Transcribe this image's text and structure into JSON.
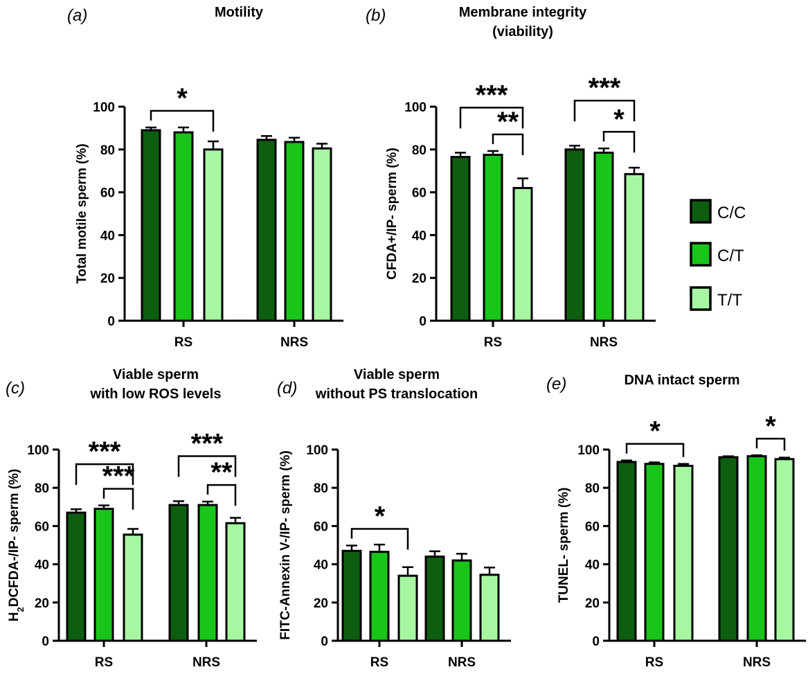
{
  "chart_data": [
    {
      "type": "bar",
      "panel": "(a)",
      "title_lines": [
        "Motility"
      ],
      "ylabel": "Total motile sperm (%)",
      "ylim": [
        0,
        100
      ],
      "yticks": [
        0,
        20,
        40,
        60,
        80,
        100
      ],
      "categories": [
        "RS",
        "NRS"
      ],
      "series": [
        {
          "name": "C/C",
          "values": [
            89,
            84.5
          ],
          "errors": [
            1.3,
            1.8
          ]
        },
        {
          "name": "C/T",
          "values": [
            88,
            83.5
          ],
          "errors": [
            2.3,
            2.0
          ]
        },
        {
          "name": "T/T",
          "values": [
            80,
            80.5
          ],
          "errors": [
            3.8,
            2.2
          ]
        }
      ],
      "significance": [
        {
          "category": 0,
          "from": 0,
          "to": 2,
          "label": "*"
        }
      ]
    },
    {
      "type": "bar",
      "panel": "(b)",
      "title_lines": [
        "Membrane integrity",
        "(viability)"
      ],
      "ylabel": "CFDA+/IP-  sperm (%)",
      "ylim": [
        0,
        100
      ],
      "yticks": [
        0,
        20,
        40,
        60,
        80,
        100
      ],
      "categories": [
        "RS",
        "NRS"
      ],
      "series": [
        {
          "name": "C/C",
          "values": [
            76.5,
            80
          ],
          "errors": [
            2.0,
            1.8
          ]
        },
        {
          "name": "C/T",
          "values": [
            77.5,
            78.5
          ],
          "errors": [
            1.8,
            2.0
          ]
        },
        {
          "name": "T/T",
          "values": [
            62,
            68.5
          ],
          "errors": [
            4.5,
            3.0
          ]
        }
      ],
      "significance": [
        {
          "category": 0,
          "from": 0,
          "to": 2,
          "label": "***"
        },
        {
          "category": 0,
          "from": 1,
          "to": 2,
          "label": "**"
        },
        {
          "category": 1,
          "from": 0,
          "to": 2,
          "label": "***"
        },
        {
          "category": 1,
          "from": 1,
          "to": 2,
          "label": "*"
        }
      ]
    },
    {
      "type": "bar",
      "panel": "(c)",
      "title_lines": [
        "Viable sperm",
        "with low ROS levels"
      ],
      "ylabel": "H2DCFDA-/IP-   sperm (%)",
      "ylim": [
        0,
        100
      ],
      "yticks": [
        0,
        20,
        40,
        60,
        80,
        100
      ],
      "categories": [
        "RS",
        "NRS"
      ],
      "series": [
        {
          "name": "C/C",
          "values": [
            67,
            71
          ],
          "errors": [
            1.8,
            2.0
          ]
        },
        {
          "name": "C/T",
          "values": [
            69,
            71
          ],
          "errors": [
            1.8,
            1.8
          ]
        },
        {
          "name": "T/T",
          "values": [
            55.5,
            61.5
          ],
          "errors": [
            3.0,
            2.8
          ]
        }
      ],
      "significance": [
        {
          "category": 0,
          "from": 0,
          "to": 2,
          "label": "***"
        },
        {
          "category": 0,
          "from": 1,
          "to": 2,
          "label": "***"
        },
        {
          "category": 1,
          "from": 0,
          "to": 2,
          "label": "***"
        },
        {
          "category": 1,
          "from": 1,
          "to": 2,
          "label": "**"
        }
      ]
    },
    {
      "type": "bar",
      "panel": "(d)",
      "title_lines": [
        "Viable sperm",
        "without PS translocation"
      ],
      "ylabel": "FITC-Annexin V-/IP- sperm (%)",
      "ylim": [
        0,
        100
      ],
      "yticks": [
        0,
        20,
        40,
        60,
        80,
        100
      ],
      "categories": [
        "RS",
        "NRS"
      ],
      "series": [
        {
          "name": "C/C",
          "values": [
            47,
            44
          ],
          "errors": [
            2.8,
            2.8
          ]
        },
        {
          "name": "C/T",
          "values": [
            46.5,
            42
          ],
          "errors": [
            3.8,
            3.5
          ]
        },
        {
          "name": "T/T",
          "values": [
            34,
            34.5
          ],
          "errors": [
            4.5,
            3.8
          ]
        }
      ],
      "significance": [
        {
          "category": 0,
          "from": 0,
          "to": 2,
          "label": "*"
        }
      ]
    },
    {
      "type": "bar",
      "panel": "(e)",
      "title_lines": [
        "DNA intact sperm"
      ],
      "ylabel": "TUNEL-    sperm (%)",
      "ylim": [
        0,
        100
      ],
      "yticks": [
        0,
        20,
        40,
        60,
        80,
        100
      ],
      "categories": [
        "RS",
        "NRS"
      ],
      "series": [
        {
          "name": "C/C",
          "values": [
            93.5,
            96
          ],
          "errors": [
            0.8,
            0.5
          ]
        },
        {
          "name": "C/T",
          "values": [
            92.5,
            96.5
          ],
          "errors": [
            0.8,
            0.5
          ]
        },
        {
          "name": "T/T",
          "values": [
            91.5,
            95
          ],
          "errors": [
            1.0,
            0.8
          ]
        }
      ],
      "significance": [
        {
          "category": 0,
          "from": 0,
          "to": 2,
          "label": "*"
        },
        {
          "category": 1,
          "from": 1,
          "to": 2,
          "label": "*"
        }
      ]
    }
  ],
  "legend": {
    "items": [
      {
        "label": "C/C",
        "color": "#0d5e10"
      },
      {
        "label": "C/T",
        "color": "#19c519"
      },
      {
        "label": "T/T",
        "color": "#a7f7a2"
      }
    ]
  },
  "colors": {
    "C/C": "#0d5e10",
    "C/T": "#19c519",
    "T/T": "#a7f7a2",
    "stroke": "#000000"
  }
}
